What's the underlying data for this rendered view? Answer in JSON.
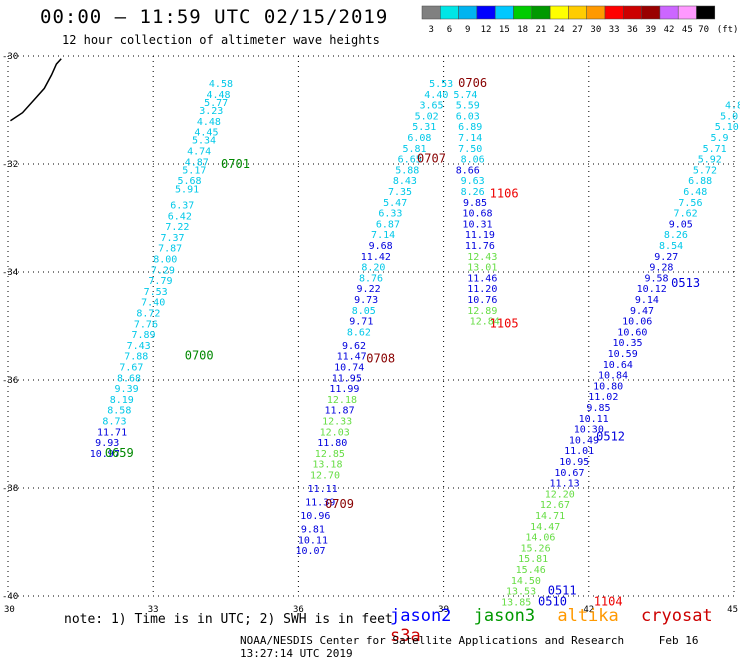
{
  "title": "00:00 – 11:59 UTC 02/15/2019",
  "subtitle": "12 hour collection of altimeter wave heights",
  "scale": {
    "unit": "(ft)",
    "levels": [
      "3",
      "6",
      "9",
      "12",
      "15",
      "18",
      "21",
      "24",
      "27",
      "30",
      "33",
      "36",
      "39",
      "42",
      "45",
      "70"
    ],
    "colors": [
      "#808080",
      "#00e6e6",
      "#00b4f0",
      "#0000ff",
      "#00c8ff",
      "#00cc00",
      "#009900",
      "#ffff00",
      "#ffcc00",
      "#ff9900",
      "#ff0000",
      "#cc0000",
      "#990000",
      "#cc66ff",
      "#ff99ff",
      "#000000"
    ]
  },
  "note": "note: 1) Time is in UTC; 2) SWH is in feet",
  "satellites": [
    {
      "name": "jason2",
      "color": "#0000ff"
    },
    {
      "name": "jason3",
      "color": "#009900"
    },
    {
      "name": "altika",
      "color": "#ff9900"
    },
    {
      "name": "cryosat",
      "color": "#cc0000"
    },
    {
      "name": "s3a",
      "color": "#cc0000"
    }
  ],
  "footer": {
    "org": "NOAA/NESDIS Center for Satellite Applications and Research",
    "timestamp": "Feb 16 13:27:14 UTC 2019"
  },
  "chart_data": {
    "type": "scatter",
    "xlabel": "",
    "ylabel": "",
    "xlim": [
      30,
      45
    ],
    "ylim": [
      -40,
      -30
    ],
    "xticks": [
      30,
      33,
      36,
      39,
      42,
      45
    ],
    "yticks": [
      -30,
      -32,
      -34,
      -36,
      -38,
      -40
    ],
    "grid": true,
    "colors": {
      "cyan": "#00c8e8",
      "blue": "#0000dd",
      "lgreen": "#66dd44",
      "green": "#008800",
      "dred": "#880000",
      "red": "#ee0000"
    },
    "shoreline": [
      [
        30.05,
        -31.2
      ],
      [
        30.3,
        -31.05
      ],
      [
        30.55,
        -30.8
      ],
      [
        30.75,
        -30.6
      ],
      [
        30.9,
        -30.35
      ],
      [
        31.0,
        -30.15
      ],
      [
        31.1,
        -30.05
      ]
    ],
    "points": [
      [
        34.4,
        -30.5,
        "4.58",
        "cyan"
      ],
      [
        34.35,
        -30.7,
        "4.48",
        "cyan"
      ],
      [
        34.3,
        -30.85,
        "5.77",
        "cyan"
      ],
      [
        34.2,
        -31.0,
        "3.23",
        "cyan"
      ],
      [
        34.15,
        -31.2,
        "4.48",
        "cyan"
      ],
      [
        34.1,
        -31.4,
        "4.45",
        "cyan"
      ],
      [
        34.05,
        -31.55,
        "5.34",
        "cyan"
      ],
      [
        33.95,
        -31.75,
        "4.74",
        "cyan"
      ],
      [
        33.9,
        -31.95,
        "4.87",
        "cyan"
      ],
      [
        33.85,
        -32.1,
        "5.17",
        "cyan"
      ],
      [
        33.75,
        -32.3,
        "5.68",
        "cyan"
      ],
      [
        33.7,
        -32.45,
        "5.91",
        "cyan"
      ],
      [
        33.6,
        -32.75,
        "6.37",
        "cyan"
      ],
      [
        33.55,
        -32.95,
        "6.42",
        "cyan"
      ],
      [
        33.5,
        -33.15,
        "7.22",
        "cyan"
      ],
      [
        33.4,
        -33.35,
        "7.37",
        "cyan"
      ],
      [
        33.35,
        -33.55,
        "7.87",
        "cyan"
      ],
      [
        33.25,
        -33.75,
        "8.00",
        "cyan"
      ],
      [
        33.2,
        -33.95,
        "7.29",
        "cyan"
      ],
      [
        33.15,
        -34.15,
        "7.79",
        "cyan"
      ],
      [
        33.05,
        -34.35,
        "7.53",
        "cyan"
      ],
      [
        33.0,
        -34.55,
        "7.40",
        "cyan"
      ],
      [
        32.9,
        -34.75,
        "8.72",
        "cyan"
      ],
      [
        32.85,
        -34.95,
        "7.76",
        "cyan"
      ],
      [
        32.8,
        -35.15,
        "7.89",
        "cyan"
      ],
      [
        32.7,
        -35.35,
        "7.43",
        "cyan"
      ],
      [
        32.65,
        -35.55,
        "7.88",
        "cyan"
      ],
      [
        32.55,
        -35.75,
        "7.67",
        "cyan"
      ],
      [
        32.5,
        -35.95,
        "8.68",
        "cyan"
      ],
      [
        32.45,
        -36.15,
        "9.39",
        "cyan"
      ],
      [
        32.35,
        -36.35,
        "8.19",
        "cyan"
      ],
      [
        32.3,
        -36.55,
        "8.58",
        "cyan"
      ],
      [
        32.2,
        -36.75,
        "8.73",
        "cyan"
      ],
      [
        32.15,
        -36.95,
        "11.71",
        "blue"
      ],
      [
        32.05,
        -37.15,
        "9.93",
        "blue"
      ],
      [
        32.0,
        -37.35,
        "10.97",
        "blue"
      ],
      [
        34.7,
        -32.0,
        "0701",
        "green"
      ],
      [
        33.95,
        -35.55,
        "0700",
        "green"
      ],
      [
        32.3,
        -37.35,
        "0659",
        "green"
      ],
      [
        38.95,
        -30.5,
        "5.53",
        "cyan"
      ],
      [
        38.85,
        -30.7,
        "4.40",
        "cyan"
      ],
      [
        38.75,
        -30.9,
        "3.65",
        "cyan"
      ],
      [
        38.65,
        -31.1,
        "5.02",
        "cyan"
      ],
      [
        38.6,
        -31.3,
        "5.31",
        "cyan"
      ],
      [
        38.5,
        -31.5,
        "6.08",
        "cyan"
      ],
      [
        38.4,
        -31.7,
        "5.81",
        "cyan"
      ],
      [
        38.3,
        -31.9,
        "6.65",
        "cyan"
      ],
      [
        38.25,
        -32.1,
        "5.88",
        "cyan"
      ],
      [
        38.2,
        -32.3,
        "8.43",
        "cyan"
      ],
      [
        38.1,
        -32.5,
        "7.35",
        "cyan"
      ],
      [
        38.0,
        -32.7,
        "5.47",
        "cyan"
      ],
      [
        37.9,
        -32.9,
        "6.33",
        "cyan"
      ],
      [
        37.85,
        -33.1,
        "6.87",
        "cyan"
      ],
      [
        37.75,
        -33.3,
        "7.14",
        "cyan"
      ],
      [
        37.7,
        -33.5,
        "9.68",
        "blue"
      ],
      [
        37.6,
        -33.7,
        "11.42",
        "blue"
      ],
      [
        37.55,
        -33.9,
        "8.20",
        "cyan"
      ],
      [
        37.5,
        -34.1,
        "8.76",
        "cyan"
      ],
      [
        37.45,
        -34.3,
        "9.22",
        "blue"
      ],
      [
        37.4,
        -34.5,
        "9.73",
        "blue"
      ],
      [
        37.35,
        -34.7,
        "8.05",
        "cyan"
      ],
      [
        37.3,
        -34.9,
        "9.71",
        "blue"
      ],
      [
        37.25,
        -35.1,
        "8.62",
        "cyan"
      ],
      [
        37.15,
        -35.35,
        "9.62",
        "blue"
      ],
      [
        37.1,
        -35.55,
        "11.47",
        "blue"
      ],
      [
        37.05,
        -35.75,
        "10.74",
        "blue"
      ],
      [
        37.0,
        -35.95,
        "11.95",
        "blue"
      ],
      [
        36.95,
        -36.15,
        "11.99",
        "blue"
      ],
      [
        36.9,
        -36.35,
        "12.18",
        "lgreen"
      ],
      [
        36.85,
        -36.55,
        "11.87",
        "blue"
      ],
      [
        36.8,
        -36.75,
        "12.33",
        "lgreen"
      ],
      [
        36.75,
        -36.95,
        "12.03",
        "lgreen"
      ],
      [
        36.7,
        -37.15,
        "11.80",
        "blue"
      ],
      [
        36.65,
        -37.35,
        "12.85",
        "lgreen"
      ],
      [
        36.6,
        -37.55,
        "13.18",
        "lgreen"
      ],
      [
        36.55,
        -37.75,
        "12.70",
        "lgreen"
      ],
      [
        36.5,
        -38.0,
        "11.11",
        "blue"
      ],
      [
        36.45,
        -38.25,
        "11.39",
        "blue"
      ],
      [
        36.35,
        -38.5,
        "10.96",
        "blue"
      ],
      [
        36.3,
        -38.75,
        "9.81",
        "blue"
      ],
      [
        36.3,
        -38.95,
        "10.11",
        "blue"
      ],
      [
        36.25,
        -39.15,
        "10.07",
        "blue"
      ],
      [
        38.75,
        -31.9,
        "0707",
        "dred"
      ],
      [
        37.7,
        -35.6,
        "0708",
        "dred"
      ],
      [
        36.85,
        -38.3,
        "0709",
        "dred"
      ],
      [
        39.6,
        -30.5,
        "0706",
        "dred"
      ],
      [
        39.45,
        -30.7,
        "5.74",
        "cyan"
      ],
      [
        39.5,
        -30.9,
        "5.59",
        "cyan"
      ],
      [
        39.5,
        -31.1,
        "6.03",
        "cyan"
      ],
      [
        39.55,
        -31.3,
        "6.89",
        "cyan"
      ],
      [
        39.55,
        -31.5,
        "7.14",
        "cyan"
      ],
      [
        39.55,
        -31.7,
        "7.50",
        "cyan"
      ],
      [
        39.6,
        -31.9,
        "8.06",
        "cyan"
      ],
      [
        39.5,
        -32.1,
        "8.66",
        "blue"
      ],
      [
        39.6,
        -32.3,
        "9.63",
        "cyan"
      ],
      [
        39.6,
        -32.5,
        "8.26",
        "cyan"
      ],
      [
        39.65,
        -32.7,
        "9.85",
        "blue"
      ],
      [
        39.7,
        -32.9,
        "10.68",
        "blue"
      ],
      [
        39.7,
        -33.1,
        "10.31",
        "blue"
      ],
      [
        39.75,
        -33.3,
        "11.19",
        "blue"
      ],
      [
        39.75,
        -33.5,
        "11.76",
        "blue"
      ],
      [
        39.8,
        -33.7,
        "12.43",
        "lgreen"
      ],
      [
        39.8,
        -33.9,
        "13.01",
        "lgreen"
      ],
      [
        39.8,
        -34.1,
        "11.46",
        "blue"
      ],
      [
        39.8,
        -34.3,
        "11.20",
        "blue"
      ],
      [
        39.8,
        -34.5,
        "10.76",
        "blue"
      ],
      [
        39.8,
        -34.7,
        "12.89",
        "lgreen"
      ],
      [
        39.85,
        -34.9,
        "12.84",
        "lgreen"
      ],
      [
        40.25,
        -32.55,
        "1106",
        "red"
      ],
      [
        40.25,
        -34.95,
        "1105",
        "red"
      ],
      [
        45.0,
        -30.9,
        "4.8",
        "cyan"
      ],
      [
        44.9,
        -31.1,
        "5.0",
        "cyan"
      ],
      [
        44.85,
        -31.3,
        "5.10",
        "cyan"
      ],
      [
        44.7,
        -31.5,
        "5.9",
        "cyan"
      ],
      [
        44.6,
        -31.7,
        "5.71",
        "cyan"
      ],
      [
        44.5,
        -31.9,
        "5.92",
        "cyan"
      ],
      [
        44.4,
        -32.1,
        "5.72",
        "cyan"
      ],
      [
        44.3,
        -32.3,
        "6.88",
        "cyan"
      ],
      [
        44.2,
        -32.5,
        "6.48",
        "cyan"
      ],
      [
        44.1,
        -32.7,
        "7.56",
        "cyan"
      ],
      [
        44.0,
        -32.9,
        "7.62",
        "cyan"
      ],
      [
        43.9,
        -33.1,
        "9.05",
        "blue"
      ],
      [
        43.8,
        -33.3,
        "8.26",
        "cyan"
      ],
      [
        43.7,
        -33.5,
        "8.54",
        "cyan"
      ],
      [
        43.6,
        -33.7,
        "9.27",
        "blue"
      ],
      [
        43.5,
        -33.9,
        "9.28",
        "blue"
      ],
      [
        43.4,
        -34.1,
        "9.58",
        "blue"
      ],
      [
        43.3,
        -34.3,
        "10.12",
        "blue"
      ],
      [
        43.2,
        -34.5,
        "9.14",
        "blue"
      ],
      [
        43.1,
        -34.7,
        "9.47",
        "blue"
      ],
      [
        43.0,
        -34.9,
        "10.06",
        "blue"
      ],
      [
        42.9,
        -35.1,
        "10.60",
        "blue"
      ],
      [
        42.8,
        -35.3,
        "10.35",
        "blue"
      ],
      [
        42.7,
        -35.5,
        "10.59",
        "blue"
      ],
      [
        42.6,
        -35.7,
        "10.64",
        "blue"
      ],
      [
        42.5,
        -35.9,
        "10.84",
        "blue"
      ],
      [
        42.4,
        -36.1,
        "10.80",
        "blue"
      ],
      [
        42.3,
        -36.3,
        "11.02",
        "blue"
      ],
      [
        42.2,
        -36.5,
        "9.85",
        "blue"
      ],
      [
        42.1,
        -36.7,
        "10.11",
        "blue"
      ],
      [
        42.0,
        -36.9,
        "10.30",
        "blue"
      ],
      [
        41.9,
        -37.1,
        "10.49",
        "blue"
      ],
      [
        41.8,
        -37.3,
        "11.01",
        "blue"
      ],
      [
        41.7,
        -37.5,
        "10.95",
        "blue"
      ],
      [
        41.6,
        -37.7,
        "10.67",
        "blue"
      ],
      [
        41.5,
        -37.9,
        "11.13",
        "blue"
      ],
      [
        41.4,
        -38.1,
        "12.20",
        "lgreen"
      ],
      [
        41.3,
        -38.3,
        "12.67",
        "lgreen"
      ],
      [
        41.2,
        -38.5,
        "14.71",
        "lgreen"
      ],
      [
        41.1,
        -38.7,
        "14.47",
        "lgreen"
      ],
      [
        41.0,
        -38.9,
        "14.06",
        "lgreen"
      ],
      [
        40.9,
        -39.1,
        "15.26",
        "lgreen"
      ],
      [
        40.85,
        -39.3,
        "15.81",
        "lgreen"
      ],
      [
        40.8,
        -39.5,
        "15.46",
        "lgreen"
      ],
      [
        40.7,
        -39.7,
        "14.50",
        "lgreen"
      ],
      [
        40.6,
        -39.9,
        "13.53",
        "lgreen"
      ],
      [
        40.5,
        -40.1,
        "13.85",
        "lgreen"
      ],
      [
        44.0,
        -34.2,
        "0513",
        "blue"
      ],
      [
        42.45,
        -37.05,
        "0512",
        "blue"
      ],
      [
        41.45,
        -39.9,
        "0511",
        "blue"
      ],
      [
        41.25,
        -40.1,
        "0510",
        "blue"
      ],
      [
        42.4,
        -40.1,
        "1104",
        "red"
      ]
    ]
  }
}
